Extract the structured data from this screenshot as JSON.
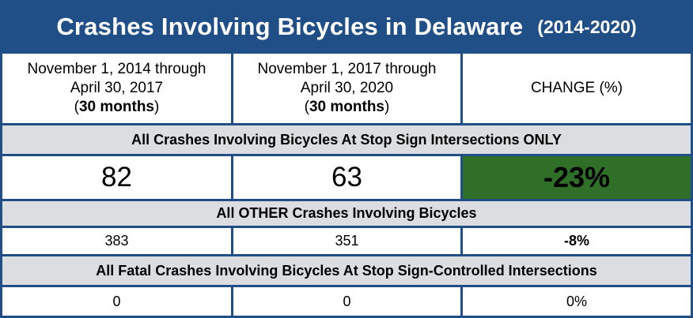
{
  "title": {
    "main": "Crashes Involving Bicycles in Delaware",
    "sub": "(2014-2020)"
  },
  "columns": [
    {
      "line1": "November 1, 2014 through",
      "line2": "April 30, 2017",
      "open": "(",
      "months": "30 months",
      "close": ")"
    },
    {
      "line1": "November 1, 2017 through",
      "line2": "April 30, 2020",
      "open": "(",
      "months": "30 months",
      "close": ")"
    },
    {
      "label": "CHANGE (%)"
    }
  ],
  "sections": [
    {
      "heading": "All Crashes Involving Bicycles At Stop Sign Intersections ONLY",
      "values": [
        "82",
        "63",
        "-23%"
      ]
    },
    {
      "heading": "All OTHER Crashes Involving Bicycles",
      "values": [
        "383",
        "351",
        "-8%"
      ]
    },
    {
      "heading": "All Fatal Crashes Involving Bicycles At Stop Sign-Controlled Intersections",
      "values": [
        "0",
        "0",
        "0%"
      ]
    }
  ],
  "colors": {
    "frame": "#1f4f86",
    "band": "#dcdde0",
    "highlight": "#2f6f27"
  },
  "chart_data": {
    "type": "table",
    "title": "Crashes Involving Bicycles in Delaware",
    "subtitle": "(2014-2020)",
    "columns": [
      "November 1, 2014 through April 30, 2017 (30 months)",
      "November 1, 2017 through April 30, 2020 (30 months)",
      "CHANGE (%)"
    ],
    "rows": [
      {
        "label": "All Crashes Involving Bicycles At Stop Sign Intersections ONLY",
        "values": [
          82,
          63,
          -23
        ]
      },
      {
        "label": "All OTHER Crashes Involving Bicycles",
        "values": [
          383,
          351,
          -8
        ]
      },
      {
        "label": "All Fatal Crashes Involving Bicycles At Stop Sign-Controlled Intersections",
        "values": [
          0,
          0,
          0
        ]
      }
    ]
  }
}
